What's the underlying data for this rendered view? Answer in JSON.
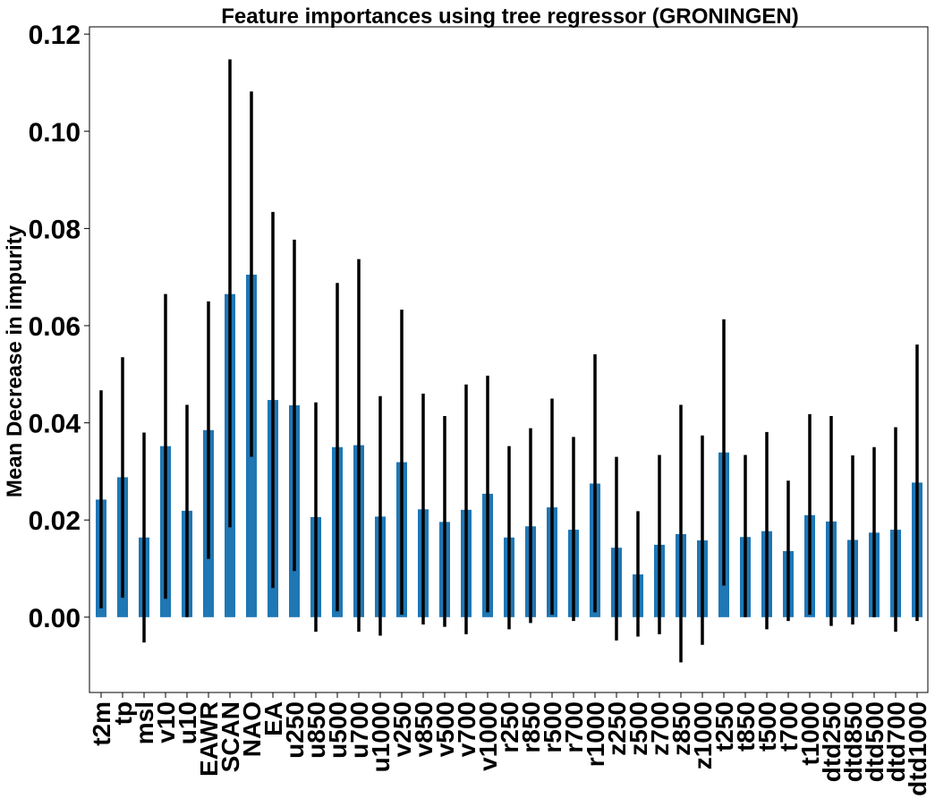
{
  "chart_data": {
    "type": "bar",
    "title": "Feature importances using tree regressor (GRONINGEN)",
    "xlabel": "",
    "ylabel": "Mean Decrease in impurity",
    "ylim": [
      -0.0155,
      0.1215
    ],
    "yticks": [
      0.0,
      0.02,
      0.04,
      0.06,
      0.08,
      0.1,
      0.12
    ],
    "ytick_labels": [
      "0.00",
      "0.02",
      "0.04",
      "0.06",
      "0.08",
      "0.10",
      "0.12"
    ],
    "grid": false,
    "bar_color": "#1f77b4",
    "error_bar_color": "#000000",
    "categories": [
      "t2m",
      "tp",
      "msl",
      "v10",
      "u10",
      "EAWR",
      "SCAN",
      "NAO",
      "EA",
      "u250",
      "u850",
      "u500",
      "u700",
      "u1000",
      "v250",
      "v850",
      "v500",
      "v700",
      "v1000",
      "r250",
      "r850",
      "r500",
      "r700",
      "r1000",
      "z250",
      "z500",
      "z700",
      "z850",
      "z1000",
      "t250",
      "t850",
      "t500",
      "t700",
      "t1000",
      "dtd250",
      "dtd850",
      "dtd500",
      "dtd700",
      "dtd1000"
    ],
    "values": [
      0.0242,
      0.0288,
      0.0164,
      0.0352,
      0.0219,
      0.0385,
      0.0665,
      0.0705,
      0.0447,
      0.0436,
      0.0206,
      0.035,
      0.0354,
      0.0207,
      0.0319,
      0.0222,
      0.0196,
      0.0221,
      0.0254,
      0.0164,
      0.0187,
      0.0226,
      0.018,
      0.0275,
      0.0143,
      0.0088,
      0.0149,
      0.0171,
      0.0158,
      0.0339,
      0.0165,
      0.0177,
      0.0136,
      0.021,
      0.0197,
      0.0159,
      0.0174,
      0.018,
      0.0277
    ],
    "error_low": [
      0.0018,
      0.004,
      -0.0052,
      0.0038,
      0.0,
      0.012,
      0.0185,
      0.033,
      0.006,
      0.0095,
      -0.003,
      0.0012,
      -0.003,
      -0.0038,
      0.0005,
      -0.0015,
      -0.002,
      -0.0035,
      0.001,
      -0.0025,
      -0.0012,
      0.0005,
      -0.0008,
      0.001,
      -0.0048,
      -0.004,
      -0.0035,
      -0.0093,
      -0.0057,
      0.0065,
      0.0,
      -0.0025,
      -0.0008,
      0.0005,
      -0.0018,
      -0.0015,
      0.0,
      -0.003,
      -0.0008
    ],
    "error_high": [
      0.0467,
      0.0535,
      0.038,
      0.0665,
      0.0437,
      0.065,
      0.1148,
      0.1082,
      0.0834,
      0.0777,
      0.0442,
      0.0688,
      0.0737,
      0.0455,
      0.0633,
      0.046,
      0.0414,
      0.0479,
      0.0497,
      0.0352,
      0.0389,
      0.045,
      0.0371,
      0.0541,
      0.033,
      0.0218,
      0.0334,
      0.0437,
      0.0374,
      0.0613,
      0.0334,
      0.0381,
      0.0281,
      0.0418,
      0.0414,
      0.0333,
      0.035,
      0.0391,
      0.0561
    ]
  }
}
